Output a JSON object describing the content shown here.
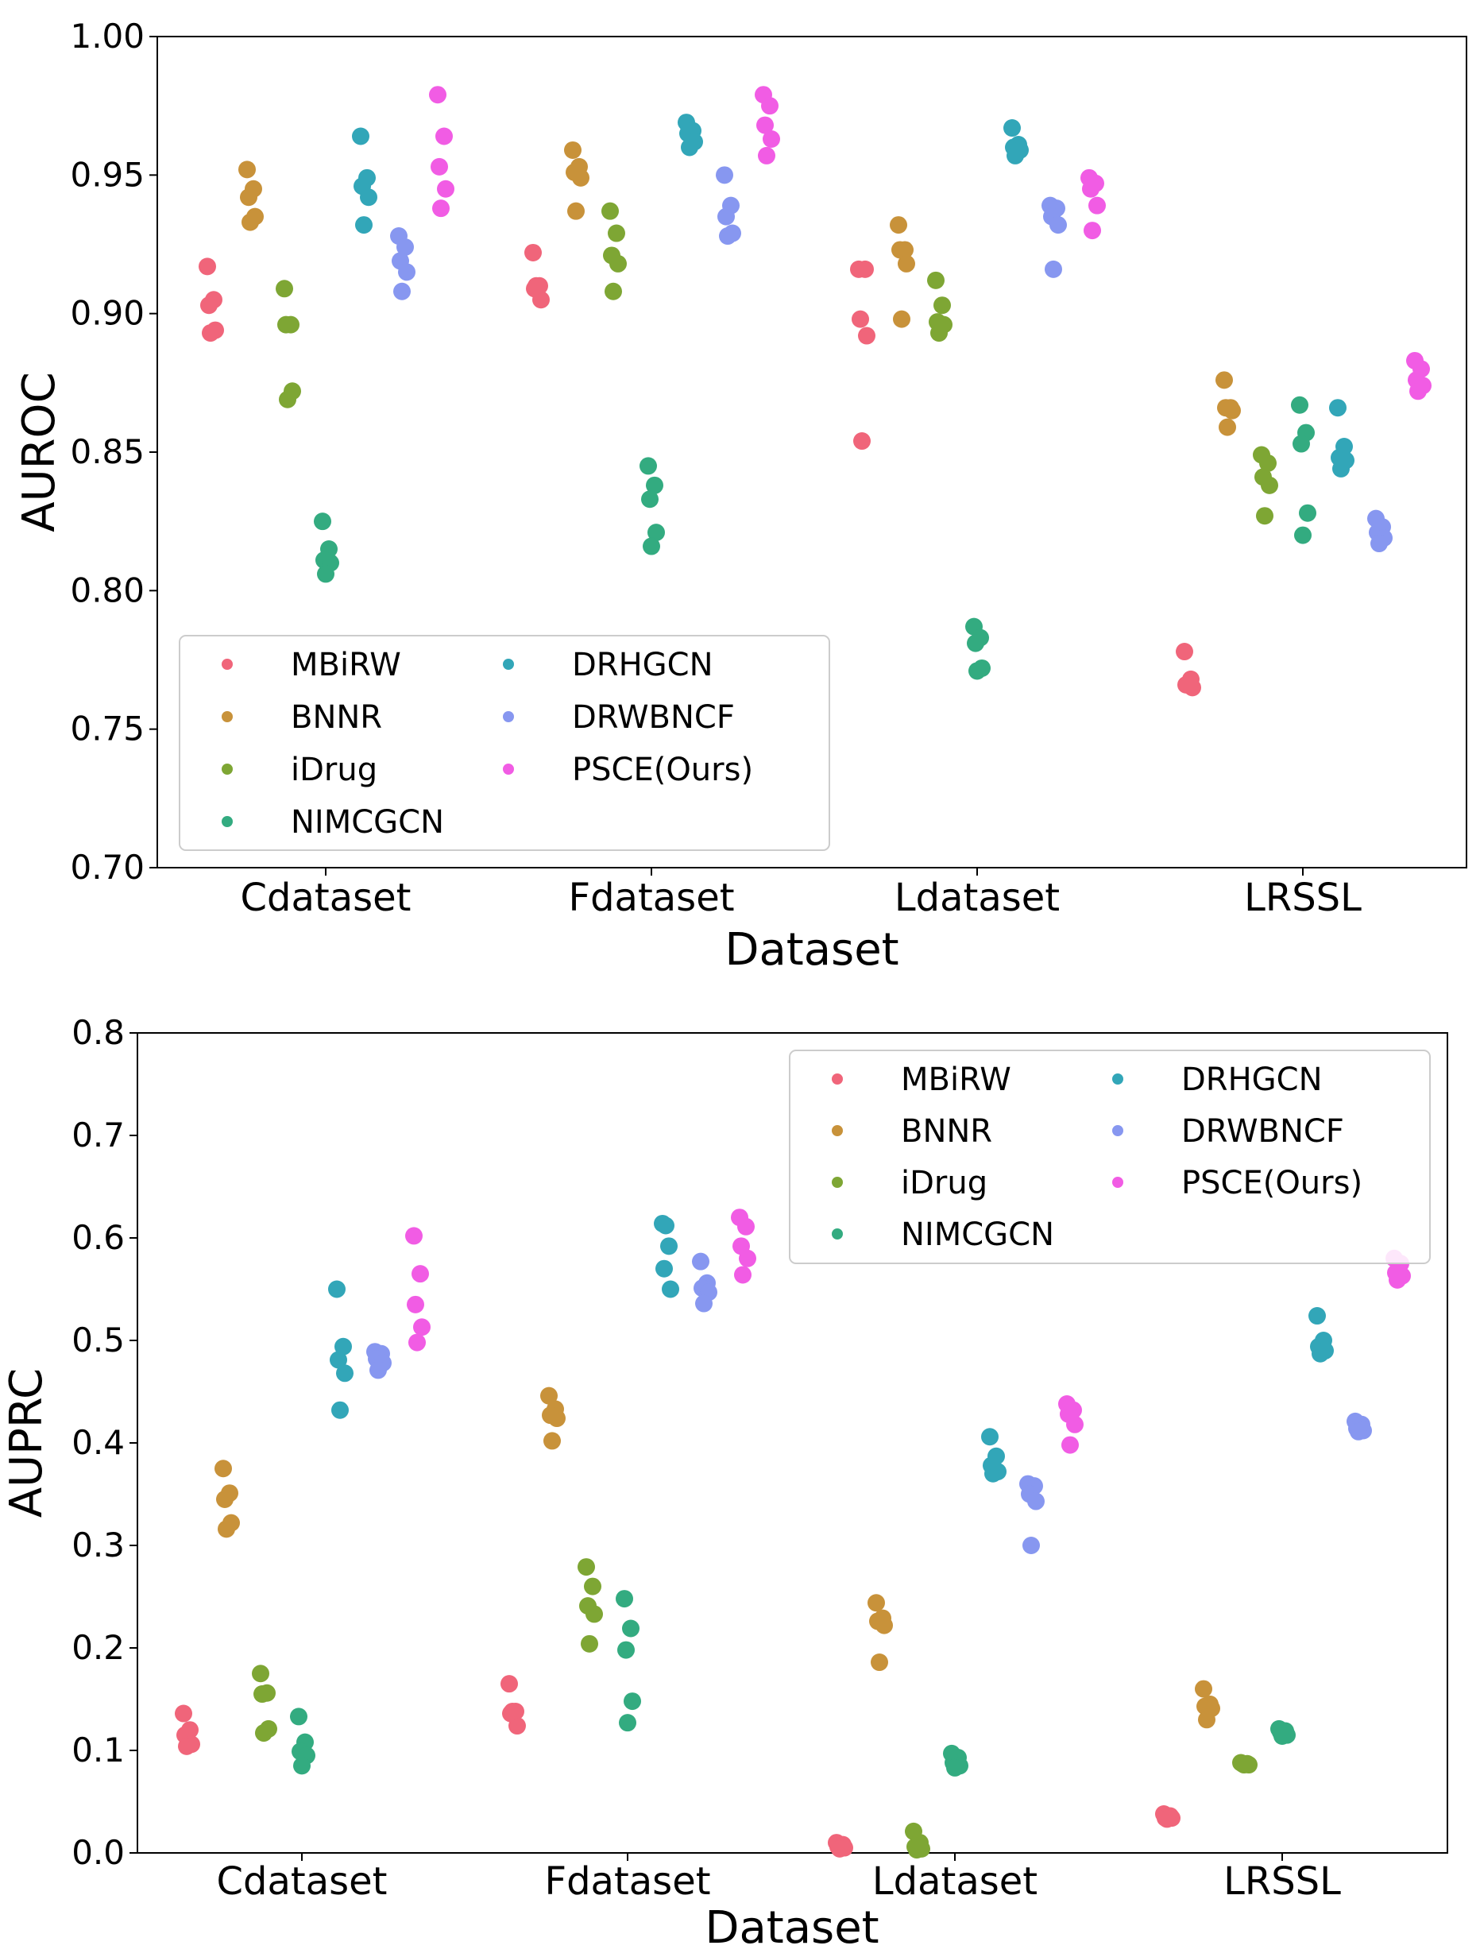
{
  "chart_data": [
    {
      "type": "scatter",
      "title": "",
      "xlabel": "Dataset",
      "ylabel": "AUROC",
      "categories": [
        "Cdataset",
        "Fdataset",
        "Ldataset",
        "LRSSL"
      ],
      "ylim": [
        0.7,
        1.0
      ],
      "yticks": [
        "0.70",
        "0.75",
        "0.80",
        "0.85",
        "0.90",
        "0.95",
        "1.00"
      ],
      "ytick_values": [
        0.7,
        0.75,
        0.8,
        0.85,
        0.9,
        0.95,
        1.0
      ],
      "legend_position": "lower-left",
      "series": [
        {
          "name": "MBiRW",
          "color": "#f0657a",
          "values": [
            [
              0.917,
              0.905,
              0.903,
              0.894,
              0.893
            ],
            [
              0.922,
              0.91,
              0.909,
              0.905,
              0.91
            ],
            [
              0.916,
              0.916,
              0.898,
              0.892,
              0.854
            ],
            [
              0.778,
              0.768,
              0.766,
              0.765,
              0.766
            ]
          ]
        },
        {
          "name": "BNNR",
          "color": "#c8923a",
          "values": [
            [
              0.952,
              0.945,
              0.942,
              0.935,
              0.933
            ],
            [
              0.959,
              0.953,
              0.951,
              0.949,
              0.937
            ],
            [
              0.932,
              0.923,
              0.923,
              0.918,
              0.898
            ],
            [
              0.876,
              0.866,
              0.866,
              0.865,
              0.859
            ]
          ]
        },
        {
          "name": "iDrug",
          "color": "#7ea634",
          "values": [
            [
              0.909,
              0.896,
              0.896,
              0.872,
              0.869
            ],
            [
              0.937,
              0.929,
              0.921,
              0.918,
              0.908
            ],
            [
              0.912,
              0.903,
              0.897,
              0.896,
              0.893
            ],
            [
              0.849,
              0.846,
              0.841,
              0.838,
              0.827
            ]
          ]
        },
        {
          "name": "NIMCGCN",
          "color": "#33ab80",
          "values": [
            [
              0.825,
              0.815,
              0.811,
              0.81,
              0.806
            ],
            [
              0.845,
              0.838,
              0.833,
              0.821,
              0.816
            ],
            [
              0.787,
              0.783,
              0.781,
              0.772,
              0.771
            ],
            [
              0.867,
              0.857,
              0.853,
              0.828,
              0.82
            ]
          ]
        },
        {
          "name": "DRHGCN",
          "color": "#32a6b8",
          "values": [
            [
              0.964,
              0.949,
              0.946,
              0.942,
              0.932
            ],
            [
              0.969,
              0.966,
              0.965,
              0.962,
              0.96
            ],
            [
              0.967,
              0.961,
              0.96,
              0.959,
              0.957
            ],
            [
              0.866,
              0.852,
              0.848,
              0.847,
              0.844
            ]
          ]
        },
        {
          "name": "DRWBNCF",
          "color": "#8797f0",
          "values": [
            [
              0.928,
              0.924,
              0.919,
              0.915,
              0.908
            ],
            [
              0.95,
              0.939,
              0.935,
              0.929,
              0.928
            ],
            [
              0.939,
              0.938,
              0.935,
              0.932,
              0.916
            ],
            [
              0.826,
              0.823,
              0.821,
              0.819,
              0.817
            ]
          ]
        },
        {
          "name": "PSCE(Ours)",
          "color": "#f15ce4",
          "values": [
            [
              0.979,
              0.964,
              0.953,
              0.945,
              0.938
            ],
            [
              0.979,
              0.975,
              0.968,
              0.963,
              0.957
            ],
            [
              0.949,
              0.947,
              0.945,
              0.939,
              0.93
            ],
            [
              0.883,
              0.88,
              0.876,
              0.874,
              0.872
            ]
          ]
        }
      ]
    },
    {
      "type": "scatter",
      "title": "",
      "xlabel": "Dataset",
      "ylabel": "AUPRC",
      "categories": [
        "Cdataset",
        "Fdataset",
        "Ldataset",
        "LRSSL"
      ],
      "ylim": [
        0.0,
        0.8
      ],
      "yticks": [
        "0.0",
        "0.1",
        "0.2",
        "0.3",
        "0.4",
        "0.5",
        "0.6",
        "0.7",
        "0.8"
      ],
      "ytick_values": [
        0.0,
        0.1,
        0.2,
        0.3,
        0.4,
        0.5,
        0.6,
        0.7,
        0.8
      ],
      "legend_position": "top-right",
      "series": [
        {
          "name": "MBiRW",
          "color": "#f0657a",
          "values": [
            [
              0.136,
              0.12,
              0.115,
              0.106,
              0.104
            ],
            [
              0.165,
              0.138,
              0.136,
              0.124,
              0.138
            ],
            [
              0.01,
              0.008,
              0.006,
              0.005,
              0.004
            ],
            [
              0.038,
              0.036,
              0.034,
              0.034,
              0.033
            ]
          ]
        },
        {
          "name": "BNNR",
          "color": "#c8923a",
          "values": [
            [
              0.375,
              0.351,
              0.345,
              0.322,
              0.316
            ],
            [
              0.446,
              0.433,
              0.427,
              0.424,
              0.402
            ],
            [
              0.244,
              0.229,
              0.226,
              0.222,
              0.186
            ],
            [
              0.16,
              0.145,
              0.143,
              0.141,
              0.13
            ]
          ]
        },
        {
          "name": "iDrug",
          "color": "#7ea634",
          "values": [
            [
              0.175,
              0.156,
              0.155,
              0.121,
              0.117
            ],
            [
              0.279,
              0.26,
              0.241,
              0.233,
              0.204
            ],
            [
              0.021,
              0.01,
              0.006,
              0.004,
              0.003
            ],
            [
              0.088,
              0.087,
              0.087,
              0.086,
              0.086
            ]
          ]
        },
        {
          "name": "NIMCGCN",
          "color": "#33ab80",
          "values": [
            [
              0.133,
              0.108,
              0.099,
              0.095,
              0.085
            ],
            [
              0.248,
              0.219,
              0.198,
              0.148,
              0.127
            ],
            [
              0.097,
              0.093,
              0.088,
              0.085,
              0.083
            ],
            [
              0.121,
              0.119,
              0.118,
              0.115,
              0.114
            ]
          ]
        },
        {
          "name": "DRHGCN",
          "color": "#32a6b8",
          "values": [
            [
              0.55,
              0.494,
              0.481,
              0.468,
              0.432
            ],
            [
              0.614,
              0.592,
              0.57,
              0.55,
              0.612
            ],
            [
              0.406,
              0.387,
              0.378,
              0.372,
              0.37
            ],
            [
              0.524,
              0.5,
              0.494,
              0.49,
              0.487
            ]
          ]
        },
        {
          "name": "DRWBNCF",
          "color": "#8797f0",
          "values": [
            [
              0.489,
              0.487,
              0.482,
              0.478,
              0.471
            ],
            [
              0.577,
              0.556,
              0.551,
              0.547,
              0.536
            ],
            [
              0.36,
              0.358,
              0.35,
              0.343,
              0.3
            ],
            [
              0.421,
              0.418,
              0.414,
              0.412,
              0.411
            ]
          ]
        },
        {
          "name": "PSCE(Ours)",
          "color": "#f15ce4",
          "values": [
            [
              0.602,
              0.565,
              0.535,
              0.513,
              0.498
            ],
            [
              0.62,
              0.611,
              0.592,
              0.58,
              0.564
            ],
            [
              0.438,
              0.432,
              0.428,
              0.418,
              0.398
            ],
            [
              0.58,
              0.575,
              0.566,
              0.563,
              0.559
            ]
          ]
        }
      ]
    }
  ]
}
